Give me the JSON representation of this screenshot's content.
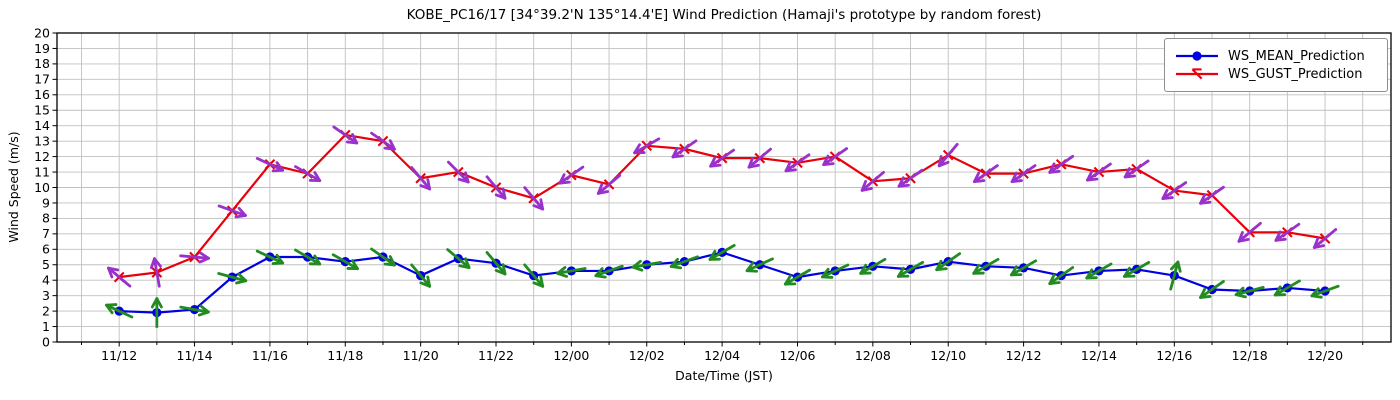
{
  "title": "KOBE_PC16/17 [34°39.2'N 135°14.4'E] Wind Prediction (Hamaji's prototype by random forest)",
  "axes": {
    "x_label": "Date/Time (JST)",
    "y_label": "Wind Speed (m/s)"
  },
  "colors": {
    "mean": "#0000e0",
    "gust": "#e8000b",
    "mean_dir_arrow": "#228b22",
    "gust_dir_arrow": "#9932cc",
    "grid": "#c0c0c0",
    "frame": "#000000",
    "background": "#ffffff"
  },
  "legend": [
    {
      "label": "WS_MEAN_Prediction",
      "color": "#0000e0",
      "marker": "circle"
    },
    {
      "label": "WS_GUST_Prediction",
      "color": "#e8000b",
      "marker": "x"
    }
  ],
  "chart_data": {
    "type": "line",
    "title": "KOBE_PC16/17 [34°39.2'N 135°14.4'E] Wind Prediction (Hamaji's prototype by random forest)",
    "xlabel": "Date/Time (JST)",
    "ylabel": "Wind Speed (m/s)",
    "grid": true,
    "legend_position": "upper right",
    "ylim": [
      0,
      20
    ],
    "y_tick_step": 1,
    "xlim_hours": [
      -1.65,
      33.75
    ],
    "x": [
      0,
      1,
      2,
      3,
      4,
      5,
      6,
      7,
      8,
      9,
      10,
      11,
      12,
      13,
      14,
      15,
      16,
      17,
      18,
      19,
      20,
      21,
      22,
      23,
      24,
      25,
      26,
      27,
      28,
      29,
      30,
      31,
      32
    ],
    "x_point_labels": [
      "11/12",
      "11/13",
      "11/14",
      "11/15",
      "11/16",
      "11/17",
      "11/18",
      "11/19",
      "11/20",
      "11/21",
      "11/22",
      "11/23",
      "12/00",
      "12/01",
      "12/02",
      "12/03",
      "12/04",
      "12/05",
      "12/06",
      "12/07",
      "12/08",
      "12/09",
      "12/10",
      "12/11",
      "12/12",
      "12/13",
      "12/14",
      "12/15",
      "12/16",
      "12/17",
      "12/18",
      "12/19",
      "12/20"
    ],
    "x_tick_hours": [
      0,
      2,
      4,
      6,
      8,
      10,
      12,
      14,
      16,
      18,
      20,
      22,
      24,
      26,
      28,
      30,
      32
    ],
    "x_tick_labels": [
      "11/12",
      "11/14",
      "11/16",
      "11/18",
      "11/20",
      "11/22",
      "12/00",
      "12/02",
      "12/04",
      "12/06",
      "12/08",
      "12/10",
      "12/12",
      "12/14",
      "12/16",
      "12/18",
      "12/20"
    ],
    "series": [
      {
        "name": "WS_MEAN_Prediction",
        "color": "#0000e0",
        "marker": "circle",
        "values": [
          2.0,
          1.9,
          2.1,
          4.2,
          5.5,
          5.5,
          5.2,
          5.5,
          4.3,
          5.4,
          5.1,
          4.3,
          4.6,
          4.6,
          5.0,
          5.2,
          5.8,
          5.0,
          4.2,
          4.6,
          4.9,
          4.7,
          5.2,
          4.9,
          4.8,
          4.3,
          4.6,
          4.7,
          4.3,
          3.4,
          3.3,
          3.5,
          3.3
        ]
      },
      {
        "name": "WS_GUST_Prediction",
        "color": "#e8000b",
        "marker": "x",
        "values": [
          4.2,
          4.5,
          5.5,
          8.5,
          11.5,
          10.9,
          13.4,
          13.0,
          10.6,
          11.0,
          10.0,
          9.3,
          10.8,
          10.2,
          12.7,
          12.5,
          11.9,
          11.9,
          11.6,
          12.0,
          10.4,
          10.6,
          12.1,
          10.9,
          10.9,
          11.5,
          11.0,
          11.2,
          9.8,
          9.5,
          7.1,
          7.1,
          6.7
        ]
      }
    ],
    "wind_arrows": [
      {
        "name": "mean-direction",
        "attached_to": "WS_MEAN_Prediction",
        "color": "#228b22",
        "angles_deg": [
          155,
          90,
          -10,
          -15,
          -25,
          -30,
          -30,
          -35,
          -50,
          -40,
          -50,
          -50,
          190,
          200,
          190,
          200,
          210,
          205,
          210,
          205,
          210,
          210,
          215,
          210,
          210,
          215,
          210,
          210,
          75,
          215,
          195,
          210,
          200
        ]
      },
      {
        "name": "gust-direction",
        "attached_to": "WS_GUST_Prediction",
        "color": "#9932cc",
        "angles_deg": [
          140,
          100,
          -5,
          -20,
          -25,
          -30,
          -35,
          -35,
          -50,
          -45,
          -50,
          -50,
          215,
          220,
          210,
          215,
          215,
          220,
          215,
          215,
          220,
          215,
          230,
          215,
          215,
          215,
          215,
          215,
          215,
          215,
          220,
          215,
          220
        ]
      }
    ]
  }
}
